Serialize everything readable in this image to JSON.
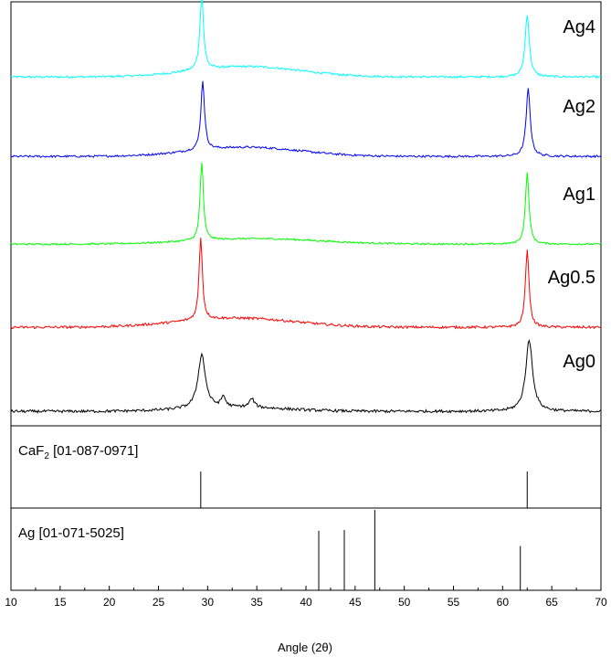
{
  "chart_data": {
    "type": "line",
    "xlabel": "Angle (2θ)",
    "xlim": [
      10,
      70
    ],
    "x_ticks": [
      "10",
      "15",
      "20",
      "25",
      "30",
      "35",
      "40",
      "45",
      "50",
      "55",
      "60",
      "65",
      "70"
    ],
    "series": [
      {
        "name": "Ag4",
        "color": "#00ffff",
        "baseline": 0.04,
        "noise": 0.012,
        "hump": {
          "center": 34,
          "width": 5.5,
          "height": 0.34
        },
        "peaks": [
          {
            "x": 29.4,
            "height": 0.85,
            "width": 0.22
          },
          {
            "x": 62.5,
            "height": 0.72,
            "width": 0.25
          }
        ]
      },
      {
        "name": "Ag2",
        "color": "#0000ff",
        "baseline": 0.04,
        "noise": 0.012,
        "hump": {
          "center": 34,
          "width": 5.5,
          "height": 0.3
        },
        "peaks": [
          {
            "x": 29.5,
            "height": 0.8,
            "width": 0.22
          },
          {
            "x": 62.6,
            "height": 0.78,
            "width": 0.25
          }
        ]
      },
      {
        "name": "Ag1",
        "color": "#00ff00",
        "baseline": 0.04,
        "noise": 0.01,
        "hump": {
          "center": 35,
          "width": 6.5,
          "height": 0.18
        },
        "peaks": [
          {
            "x": 29.4,
            "height": 0.9,
            "width": 0.2
          },
          {
            "x": 62.5,
            "height": 0.82,
            "width": 0.22
          }
        ]
      },
      {
        "name": "Ag0.5",
        "color": "#ff0000",
        "baseline": 0.04,
        "noise": 0.014,
        "hump": {
          "center": 33,
          "width": 6.0,
          "height": 0.3
        },
        "peaks": [
          {
            "x": 29.3,
            "height": 0.95,
            "width": 0.2
          },
          {
            "x": 62.5,
            "height": 0.9,
            "width": 0.22
          }
        ]
      },
      {
        "name": "Ag0",
        "color": "#000000",
        "baseline": 0.04,
        "noise": 0.016,
        "hump": {
          "center": 33,
          "width": 5.0,
          "height": 0.13
        },
        "peaks": [
          {
            "x": 29.4,
            "height": 0.62,
            "width": 0.45
          },
          {
            "x": 31.6,
            "height": 0.12,
            "width": 0.25
          },
          {
            "x": 34.5,
            "height": 0.1,
            "width": 0.3
          },
          {
            "x": 62.7,
            "height": 0.82,
            "width": 0.42
          }
        ]
      }
    ],
    "references": [
      {
        "label": "CaF",
        "sub": "2",
        "code": "[01-087-0971]",
        "lines": [
          {
            "x": 29.3,
            "intensity": 1.0
          },
          {
            "x": 62.5,
            "intensity": 1.0
          }
        ]
      },
      {
        "label": "Ag",
        "sub": "",
        "code": " [01-071-5025]",
        "lines": [
          {
            "x": 41.3,
            "intensity": 0.74
          },
          {
            "x": 43.9,
            "intensity": 0.75
          },
          {
            "x": 47.0,
            "intensity": 1.0
          },
          {
            "x": 61.8,
            "intensity": 0.55
          }
        ]
      }
    ]
  }
}
